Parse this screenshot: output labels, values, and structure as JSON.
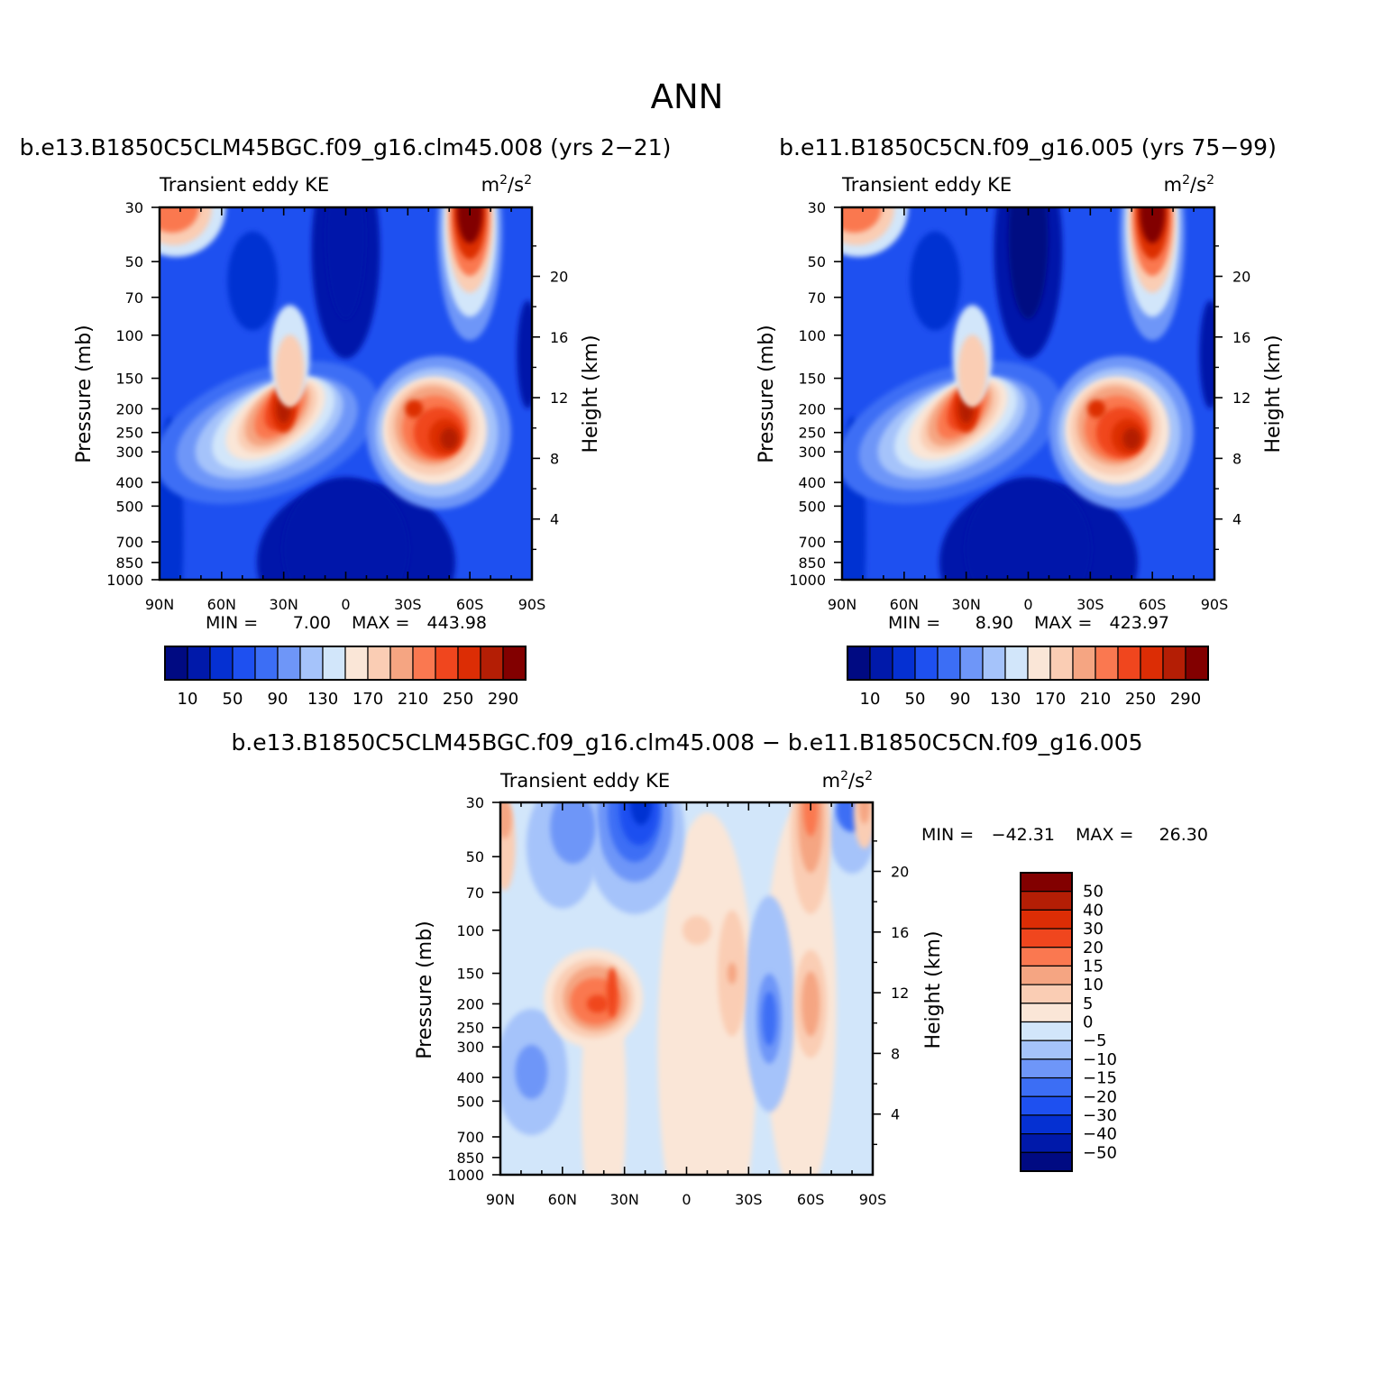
{
  "figure": {
    "title": "ANN",
    "diff_title": "b.e13.B1850C5CLM45BGC.f09_g16.clm45.008 − b.e11.B1850C5CN.f09_g16.005"
  },
  "panels": [
    {
      "id": "p1",
      "case_title": "b.e13.B1850C5CLM45BGC.f09_g16.clm45.008 (yrs 2−21)",
      "left_label": "Transient eddy KE",
      "units_base": "m",
      "units_exp1": "2",
      "units_mid": "/s",
      "units_exp2": "2",
      "y_label": "Pressure (mb)",
      "y2_label": "Height (km)",
      "min_label": "MIN =",
      "min_value": "7.00",
      "max_label": "MAX =",
      "max_value": "443.98"
    },
    {
      "id": "p2",
      "case_title": "b.e11.B1850C5CN.f09_g16.005 (yrs 75−99)",
      "left_label": "Transient eddy KE",
      "units_base": "m",
      "units_exp1": "2",
      "units_mid": "/s",
      "units_exp2": "2",
      "y_label": "Pressure (mb)",
      "y2_label": "Height (km)",
      "min_label": "MIN =",
      "min_value": "8.90",
      "max_label": "MAX =",
      "max_value": "423.97"
    },
    {
      "id": "p3",
      "case_title": "",
      "left_label": "Transient eddy KE",
      "units_base": "m",
      "units_exp1": "2",
      "units_mid": "/s",
      "units_exp2": "2",
      "y_label": "Pressure (mb)",
      "y2_label": "Height (km)",
      "min_label": "MIN =",
      "min_value": "−42.31",
      "max_label": "MAX =",
      "max_value": "26.30"
    }
  ],
  "chart_data": [
    {
      "type": "heatmap",
      "title": "b.e13.B1850C5CLM45BGC.f09_g16.clm45.008 (yrs 2−21)",
      "xlabel": "",
      "ylabel": "Pressure (mb)",
      "y2label": "Height (km)",
      "x_ticks": [
        "90N",
        "60N",
        "30N",
        "0",
        "30S",
        "60S",
        "90S"
      ],
      "x_tick_values": [
        90,
        60,
        30,
        0,
        -30,
        -60,
        -90
      ],
      "y_ticks": [
        30,
        50,
        70,
        100,
        150,
        200,
        250,
        300,
        400,
        500,
        700,
        850,
        1000
      ],
      "y_scale": "log",
      "y_reversed": true,
      "y2_ticks": [
        20,
        16,
        12,
        8,
        4
      ],
      "colorbar_levels": [
        10,
        30,
        50,
        70,
        90,
        110,
        130,
        150,
        170,
        190,
        210,
        230,
        250,
        270,
        290
      ],
      "colorbar_labels": [
        "10",
        "50",
        "90",
        "130",
        "170",
        "210",
        "250",
        "290"
      ],
      "min": 7.0,
      "max": 443.98,
      "features": [
        {
          "lat": 30,
          "p": 200,
          "value": 330
        },
        {
          "lat": -45,
          "p": 250,
          "value": 330
        },
        {
          "lat": -60,
          "p": 35,
          "value": 444
        },
        {
          "lat": 80,
          "p": 30,
          "value": 250
        }
      ]
    },
    {
      "type": "heatmap",
      "title": "b.e11.B1850C5CN.f09_g16.005 (yrs 75−99)",
      "xlabel": "",
      "ylabel": "Pressure (mb)",
      "y2label": "Height (km)",
      "x_ticks": [
        "90N",
        "60N",
        "30N",
        "0",
        "30S",
        "60S",
        "90S"
      ],
      "x_tick_values": [
        90,
        60,
        30,
        0,
        -30,
        -60,
        -90
      ],
      "y_ticks": [
        30,
        50,
        70,
        100,
        150,
        200,
        250,
        300,
        400,
        500,
        700,
        850,
        1000
      ],
      "y_scale": "log",
      "y_reversed": true,
      "y2_ticks": [
        20,
        16,
        12,
        8,
        4
      ],
      "colorbar_levels": [
        10,
        30,
        50,
        70,
        90,
        110,
        130,
        150,
        170,
        190,
        210,
        230,
        250,
        270,
        290
      ],
      "colorbar_labels": [
        "10",
        "50",
        "90",
        "130",
        "170",
        "210",
        "250",
        "290"
      ],
      "min": 8.9,
      "max": 423.97,
      "features": [
        {
          "lat": 30,
          "p": 200,
          "value": 310
        },
        {
          "lat": -45,
          "p": 250,
          "value": 320
        },
        {
          "lat": -60,
          "p": 35,
          "value": 424
        },
        {
          "lat": 80,
          "p": 30,
          "value": 250
        }
      ]
    },
    {
      "type": "heatmap",
      "title": "b.e13.B1850C5CLM45BGC.f09_g16.clm45.008 − b.e11.B1850C5CN.f09_g16.005",
      "xlabel": "",
      "ylabel": "Pressure (mb)",
      "y2label": "Height (km)",
      "x_ticks": [
        "90N",
        "60N",
        "30N",
        "0",
        "30S",
        "60S",
        "90S"
      ],
      "x_tick_values": [
        90,
        60,
        30,
        0,
        -30,
        -60,
        -90
      ],
      "y_ticks": [
        30,
        50,
        70,
        100,
        150,
        200,
        250,
        300,
        400,
        500,
        700,
        850,
        1000
      ],
      "y_scale": "log",
      "y_reversed": true,
      "y2_ticks": [
        20,
        16,
        12,
        8,
        4
      ],
      "colorbar_levels": [
        -50,
        -40,
        -30,
        -20,
        -15,
        -10,
        -5,
        0,
        5,
        10,
        15,
        20,
        30,
        40,
        50
      ],
      "colorbar_labels": [
        "50",
        "40",
        "30",
        "20",
        "15",
        "10",
        "5",
        "0",
        "−5",
        "−10",
        "−15",
        "−20",
        "−30",
        "−40",
        "−50"
      ],
      "min": -42.31,
      "max": 26.3,
      "features": [
        {
          "lat": 45,
          "p": 200,
          "value": 25
        },
        {
          "lat": 25,
          "p": 35,
          "value": -42
        },
        {
          "lat": -40,
          "p": 230,
          "value": -18
        },
        {
          "lat": -60,
          "p": 35,
          "value": 18
        },
        {
          "lat": 75,
          "p": 380,
          "value": -15
        }
      ]
    }
  ],
  "colors": {
    "kepal": [
      "#000a82",
      "#0019aa",
      "#0530d2",
      "#1e50f0",
      "#3c6ef5",
      "#6e96f8",
      "#a5c3fa",
      "#d2e6fa",
      "#fae6d7",
      "#facdb4",
      "#f5a582",
      "#fa7850",
      "#f0461e",
      "#dc2d05",
      "#b41e05",
      "#820000"
    ]
  }
}
